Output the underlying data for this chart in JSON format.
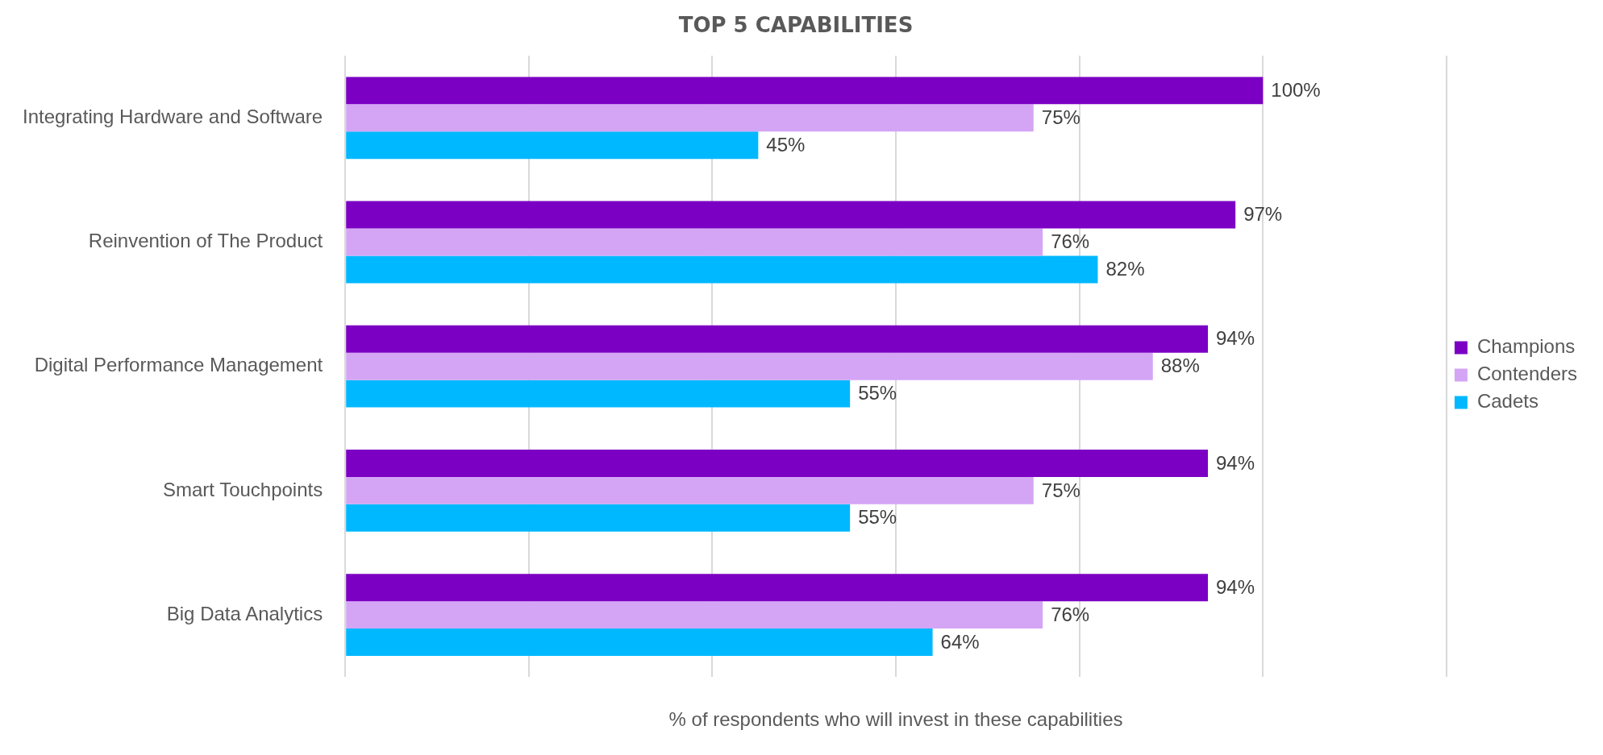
{
  "chart_data": {
    "type": "bar",
    "orientation": "horizontal",
    "title": "TOP 5 CAPABILITIES",
    "xlabel": "% of respondents who will invest in these capabilities",
    "categories": [
      "Integrating Hardware and Software",
      "Reinvention of The Product",
      "Digital Performance Management",
      "Smart Touchpoints",
      "Big Data Analytics"
    ],
    "series": [
      {
        "name": "Champions",
        "color": "#7b00c4",
        "values": [
          100,
          97,
          94,
          94,
          94
        ],
        "value_labels": [
          "100%",
          "97%",
          "94%",
          "94%",
          "94%"
        ]
      },
      {
        "name": "Contenders",
        "color": "#d4a5f5",
        "values": [
          75,
          76,
          88,
          75,
          76
        ],
        "value_labels": [
          "75%",
          "76%",
          "88%",
          "75%",
          "76%"
        ]
      },
      {
        "name": "Cadets",
        "color": "#00b8ff",
        "values": [
          45,
          82,
          55,
          55,
          64
        ],
        "value_labels": [
          "45%",
          "82%",
          "55%",
          "55%",
          "64%"
        ]
      }
    ],
    "xlim": [
      0,
      120
    ],
    "xticks": [
      {
        "value": 0,
        "label": null
      },
      {
        "value": 20,
        "label": null
      },
      {
        "value": 40,
        "label": null
      },
      {
        "value": 60,
        "label": null
      },
      {
        "value": 80,
        "label": null
      },
      {
        "value": 100,
        "label": null
      },
      {
        "value": 120,
        "label": null
      }
    ],
    "grid": "x",
    "legend": "right",
    "tick_labels": "y"
  }
}
